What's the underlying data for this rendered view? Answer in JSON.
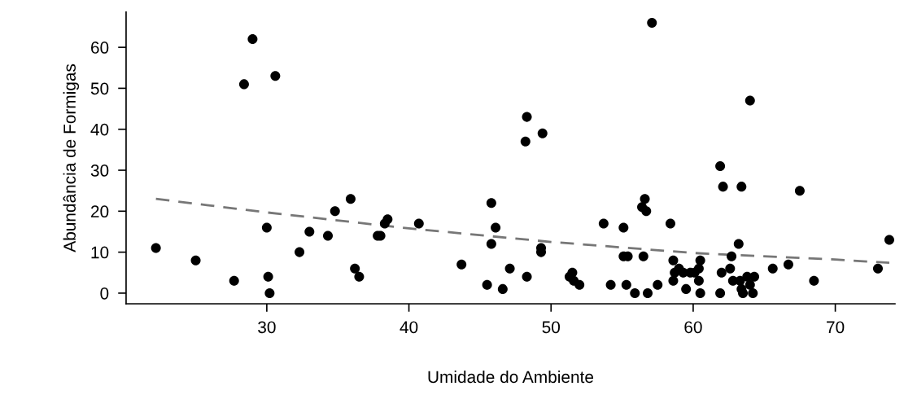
{
  "chart_data": {
    "type": "scatter",
    "xlabel": "Umidade do Ambiente",
    "ylabel": "Abundância de Formigas",
    "xlim": [
      20.1,
      74.2
    ],
    "ylim": [
      -2.6,
      68.6
    ],
    "xticks": [
      30,
      40,
      50,
      60,
      70
    ],
    "yticks": [
      0,
      10,
      20,
      30,
      40,
      50,
      60
    ],
    "grid": false,
    "legend": false,
    "marker": "circle",
    "series": [
      {
        "color": "#000000",
        "x": [
          22.2,
          25,
          27.7,
          29,
          28.4,
          30.6,
          30,
          30.1,
          30.2,
          32.3,
          33,
          34.3,
          34.8,
          35.9,
          36.2,
          36.5,
          37.8,
          38,
          38.3,
          38.5,
          40.7,
          43.7,
          45.5,
          45.8,
          45.8,
          46.1,
          46.6,
          47.1,
          48.3,
          48.2,
          48.3,
          49.4,
          49.3,
          49.3,
          51.3,
          51.5,
          51.6,
          52,
          53.7,
          54.2,
          55.1,
          55.1,
          55.4,
          55.3,
          55.9,
          56.4,
          56.6,
          56.7,
          56.5,
          56.8,
          57.1,
          57.5,
          58.4,
          58.6,
          58.7,
          58.6,
          59,
          59.3,
          59.5,
          59.8,
          60.1,
          60.4,
          60.5,
          60.4,
          60.5,
          61.9,
          62.1,
          61.9,
          62,
          62.7,
          62.6,
          62.8,
          63.2,
          63.4,
          63.3,
          63.4,
          63.5,
          63.8,
          64,
          64,
          64.2,
          64.3,
          65.6,
          66.7,
          67.5,
          68.5,
          73,
          73.8
        ],
        "values": [
          11,
          8,
          3,
          62,
          51,
          53,
          16,
          4,
          0,
          10,
          15,
          14,
          20,
          23,
          6,
          4,
          14,
          14,
          17,
          18,
          17,
          7,
          2,
          22,
          12,
          16,
          1,
          6,
          43,
          37,
          4,
          39,
          11,
          10,
          4,
          5,
          3,
          2,
          17,
          2,
          16,
          9,
          9,
          2,
          0,
          21,
          23,
          20,
          9,
          0,
          66,
          2,
          17,
          8,
          5,
          3,
          6,
          5,
          1,
          5,
          5,
          6,
          8,
          3,
          0,
          31,
          26,
          0,
          5,
          9,
          6,
          3,
          12,
          26,
          3,
          1,
          0,
          4,
          47,
          2,
          0,
          4,
          6,
          7,
          25,
          3,
          6,
          13
        ]
      },
      {
        "type": "line",
        "color": "#777777",
        "line_style": "dashed",
        "marker": "none",
        "x": [
          22.2,
          30,
          40,
          50,
          60,
          70,
          73.8
        ],
        "values": [
          23,
          19.7,
          15.8,
          12.5,
          9.8,
          8.2,
          7.4
        ]
      }
    ]
  }
}
